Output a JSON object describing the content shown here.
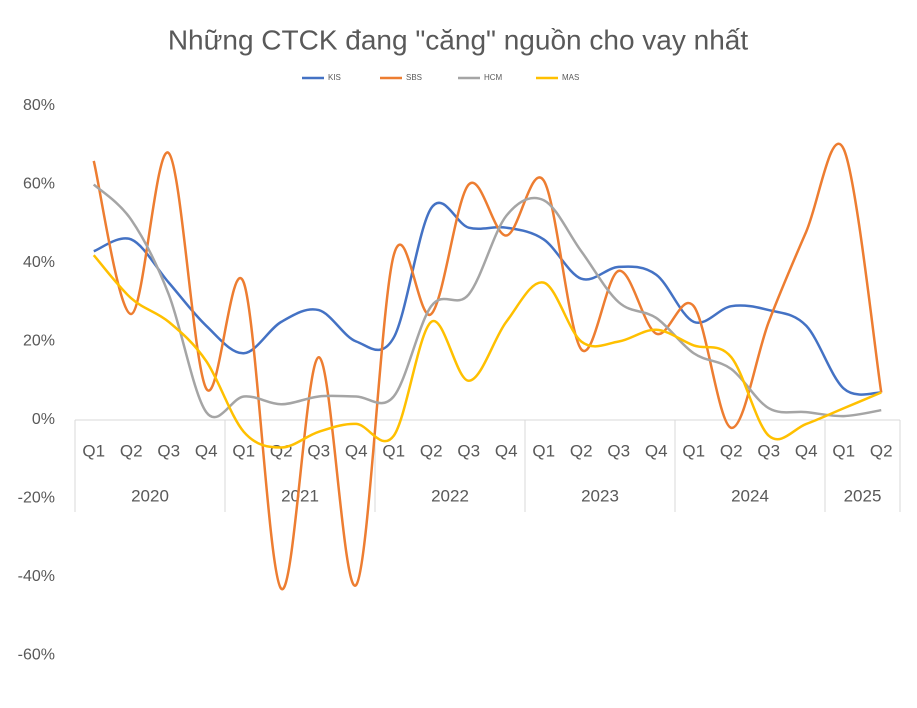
{
  "chart_data": {
    "type": "line",
    "title": "Những CTCK đang \"căng\" nguồn cho vay nhất",
    "categories": [
      "Q1",
      "Q2",
      "Q3",
      "Q4",
      "Q1",
      "Q2",
      "Q3",
      "Q4",
      "Q1",
      "Q2",
      "Q3",
      "Q4",
      "Q1",
      "Q2",
      "Q3",
      "Q4",
      "Q1",
      "Q2",
      "Q3",
      "Q4",
      "Q1",
      "Q2"
    ],
    "groups": [
      {
        "label": "2020",
        "count": 4
      },
      {
        "label": "2021",
        "count": 4
      },
      {
        "label": "2022",
        "count": 4
      },
      {
        "label": "2023",
        "count": 4
      },
      {
        "label": "2024",
        "count": 4
      },
      {
        "label": "2025",
        "count": 2
      }
    ],
    "series": [
      {
        "name": "KIS",
        "color": "#4472c4",
        "values": [
          43,
          46,
          35,
          24,
          17,
          25,
          28,
          20,
          21,
          54,
          49,
          49,
          46,
          36,
          39,
          37,
          25,
          29,
          28,
          24,
          8,
          7
        ]
      },
      {
        "name": "SBS",
        "color": "#ed7d31",
        "values": [
          66,
          27,
          68,
          8,
          35,
          -43,
          16,
          -42,
          42,
          27,
          60,
          47,
          61,
          18,
          38,
          22,
          29,
          -2,
          25,
          48,
          69,
          7
        ]
      },
      {
        "name": "HCM",
        "color": "#a5a5a5",
        "values": [
          60,
          51,
          32,
          2,
          6,
          4,
          6,
          6,
          6,
          29,
          32,
          52,
          56,
          43,
          30,
          26,
          17,
          13,
          3,
          2,
          1,
          2.5
        ]
      },
      {
        "name": "MAS",
        "color": "#ffc000",
        "values": [
          42,
          31,
          25,
          15,
          -3,
          -7,
          -3,
          -1,
          -4,
          25,
          10,
          25,
          35,
          20,
          20,
          23,
          19,
          16,
          -4,
          -1,
          3,
          7
        ]
      }
    ],
    "ylim": [
      -60,
      80
    ],
    "yticks": [
      {
        "value": -60,
        "label": "-60%"
      },
      {
        "value": -40,
        "label": "-40%"
      },
      {
        "value": -20,
        "label": "-20%"
      },
      {
        "value": 0,
        "label": "0%"
      },
      {
        "value": 20,
        "label": "20%"
      },
      {
        "value": 40,
        "label": "40%"
      },
      {
        "value": 60,
        "label": "60%"
      },
      {
        "value": 80,
        "label": "80%"
      }
    ],
    "smooth": true,
    "legend": "top"
  }
}
